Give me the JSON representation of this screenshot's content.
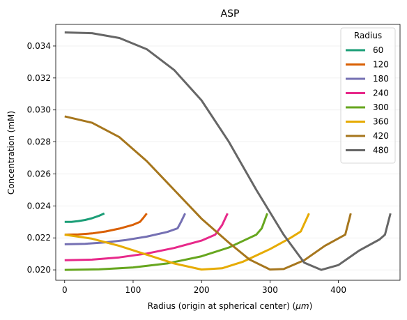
{
  "chart_data": {
    "type": "line",
    "title": "ASP",
    "xlabel": "Radius (origin at spherical center) (",
    "xlabel_unit": "μm",
    "xlabel_close": ")",
    "ylabel": "Concentration (mM)",
    "xlim": [
      -13,
      490
    ],
    "ylim": [
      0.01935,
      0.03535
    ],
    "xticks": [
      0,
      100,
      200,
      300,
      400
    ],
    "yticks": [
      0.02,
      0.022,
      0.024,
      0.026,
      0.028,
      0.03,
      0.032,
      0.034
    ],
    "ytick_labels": [
      "0.020",
      "0.022",
      "0.024",
      "0.026",
      "0.028",
      "0.030",
      "0.032",
      "0.034"
    ],
    "grid": "horizontal",
    "legend": {
      "title": "Radius",
      "placement": "top-right"
    },
    "series": [
      {
        "name": "60",
        "color": "#1b9e77",
        "points": [
          [
            0,
            0.023
          ],
          [
            10,
            0.023
          ],
          [
            20,
            0.02305
          ],
          [
            30,
            0.02312
          ],
          [
            40,
            0.02323
          ],
          [
            50,
            0.02338
          ],
          [
            58,
            0.02353
          ]
        ]
      },
      {
        "name": "120",
        "color": "#d95f02",
        "points": [
          [
            0,
            0.0222
          ],
          [
            20,
            0.02222
          ],
          [
            40,
            0.02228
          ],
          [
            60,
            0.0224
          ],
          [
            80,
            0.02258
          ],
          [
            100,
            0.02282
          ],
          [
            110,
            0.023
          ],
          [
            115,
            0.02325
          ],
          [
            120,
            0.02353
          ]
        ]
      },
      {
        "name": "180",
        "color": "#7570b3",
        "points": [
          [
            0,
            0.0216
          ],
          [
            30,
            0.02163
          ],
          [
            60,
            0.02172
          ],
          [
            90,
            0.02187
          ],
          [
            120,
            0.02208
          ],
          [
            150,
            0.02237
          ],
          [
            165,
            0.0226
          ],
          [
            170,
            0.023
          ],
          [
            176,
            0.02353
          ]
        ]
      },
      {
        "name": "240",
        "color": "#e7298a",
        "points": [
          [
            0,
            0.0206
          ],
          [
            40,
            0.02064
          ],
          [
            80,
            0.02078
          ],
          [
            120,
            0.02102
          ],
          [
            160,
            0.02137
          ],
          [
            200,
            0.02183
          ],
          [
            220,
            0.0222
          ],
          [
            230,
            0.0228
          ],
          [
            238,
            0.02353
          ]
        ]
      },
      {
        "name": "300",
        "color": "#66a61e",
        "points": [
          [
            0,
            0.02
          ],
          [
            50,
            0.02003
          ],
          [
            100,
            0.02015
          ],
          [
            150,
            0.0204
          ],
          [
            200,
            0.02085
          ],
          [
            240,
            0.0214
          ],
          [
            260,
            0.0218
          ],
          [
            280,
            0.0222
          ],
          [
            288,
            0.0226
          ],
          [
            296,
            0.02353
          ]
        ]
      },
      {
        "name": "360",
        "color": "#e6ab02",
        "points": [
          [
            0,
            0.0222
          ],
          [
            40,
            0.02195
          ],
          [
            80,
            0.0215
          ],
          [
            120,
            0.02095
          ],
          [
            160,
            0.0204
          ],
          [
            200,
            0.02002
          ],
          [
            230,
            0.0201
          ],
          [
            260,
            0.0205
          ],
          [
            300,
            0.0213
          ],
          [
            330,
            0.022
          ],
          [
            345,
            0.0224
          ],
          [
            357,
            0.02353
          ]
        ]
      },
      {
        "name": "420",
        "color": "#a6761d",
        "points": [
          [
            0,
            0.0296
          ],
          [
            40,
            0.0292
          ],
          [
            80,
            0.0283
          ],
          [
            120,
            0.0268
          ],
          [
            160,
            0.025
          ],
          [
            200,
            0.0232
          ],
          [
            240,
            0.0217
          ],
          [
            270,
            0.02065
          ],
          [
            300,
            0.02002
          ],
          [
            320,
            0.02005
          ],
          [
            350,
            0.0206
          ],
          [
            380,
            0.0215
          ],
          [
            410,
            0.0222
          ],
          [
            418,
            0.02353
          ]
        ]
      },
      {
        "name": "480",
        "color": "#666666",
        "points": [
          [
            0,
            0.03485
          ],
          [
            40,
            0.0348
          ],
          [
            80,
            0.0345
          ],
          [
            120,
            0.0338
          ],
          [
            160,
            0.0325
          ],
          [
            200,
            0.0306
          ],
          [
            240,
            0.028
          ],
          [
            280,
            0.025
          ],
          [
            320,
            0.0222
          ],
          [
            350,
            0.02045
          ],
          [
            375,
            0.02
          ],
          [
            400,
            0.0203
          ],
          [
            430,
            0.0212
          ],
          [
            460,
            0.0219
          ],
          [
            468,
            0.0222
          ],
          [
            476,
            0.02353
          ]
        ]
      }
    ]
  }
}
